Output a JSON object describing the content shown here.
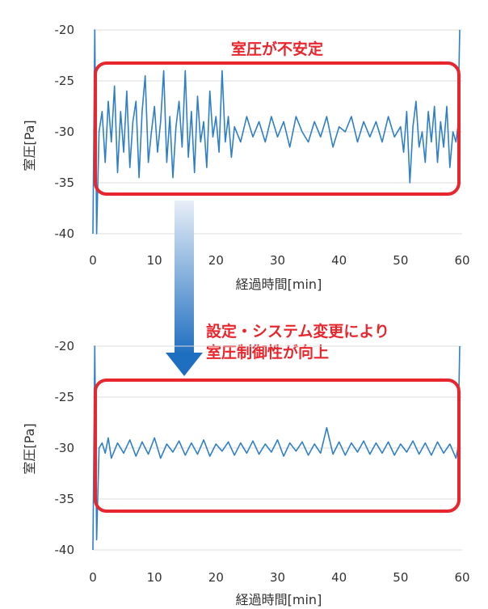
{
  "colors": {
    "series": "#2f7fc6",
    "highlight": "#e8262d",
    "grid": "#dcdcdc",
    "arrow_top": "#e8eef7",
    "arrow_bottom": "#1f6fc0"
  },
  "transition_note": "設定・システム変更により\n室圧制御性が向上",
  "chart_data": [
    {
      "type": "line",
      "xlabel": "経過時間[min]",
      "ylabel": "室圧[Pa]",
      "xlim": [
        0,
        60
      ],
      "ylim": [
        -40,
        -20
      ],
      "xticks": [
        0,
        10,
        20,
        30,
        40,
        50,
        60
      ],
      "yticks": [
        -20,
        -25,
        -30,
        -35,
        -40
      ],
      "grid": "horizontal",
      "series": [
        {
          "x": [
            0.0,
            0.3,
            0.6,
            1.0,
            1.5,
            2.0,
            2.5,
            3.0,
            3.5,
            4.0,
            4.5,
            5.0,
            5.5,
            6.0,
            6.5,
            7.0,
            7.5,
            8.0,
            8.5,
            9.0,
            9.5,
            10.0,
            10.5,
            11.0,
            11.5,
            12.0,
            12.5,
            13.0,
            13.5,
            14.0,
            14.5,
            15.0,
            15.5,
            16.0,
            16.5,
            17.0,
            17.5,
            18.0,
            18.5,
            19.0,
            19.5,
            20.0,
            20.5,
            21.0,
            21.5,
            22.0,
            22.5,
            23.0,
            24.0,
            25.0,
            26.0,
            27.0,
            28.0,
            29.0,
            30.0,
            31.0,
            32.0,
            33.0,
            34.0,
            35.0,
            36.0,
            37.0,
            38.0,
            39.0,
            40.0,
            41.0,
            42.0,
            43.0,
            44.0,
            45.0,
            46.0,
            47.0,
            48.0,
            49.0,
            50.0,
            50.5,
            51.0,
            51.5,
            52.0,
            52.5,
            53.0,
            53.5,
            54.0,
            54.5,
            55.0,
            55.5,
            56.0,
            56.5,
            57.0,
            57.5,
            58.0,
            58.5,
            59.0,
            59.3,
            59.6
          ],
          "y": [
            -40.0,
            -20.0,
            -40.0,
            -30.0,
            -28.0,
            -33.0,
            -27.0,
            -31.0,
            -25.5,
            -34.0,
            -28.0,
            -32.0,
            -26.0,
            -33.5,
            -29.0,
            -27.0,
            -34.5,
            -28.0,
            -24.5,
            -33.0,
            -30.0,
            -27.5,
            -32.0,
            -29.0,
            -24.0,
            -33.0,
            -28.5,
            -34.5,
            -29.5,
            -27.0,
            -31.5,
            -24.0,
            -32.5,
            -28.0,
            -34.0,
            -26.5,
            -31.0,
            -29.0,
            -33.5,
            -26.0,
            -30.5,
            -28.5,
            -32.0,
            -24.0,
            -31.0,
            -28.5,
            -32.5,
            -29.5,
            -31.0,
            -28.5,
            -30.5,
            -29.0,
            -31.0,
            -28.5,
            -30.5,
            -29.0,
            -31.5,
            -28.5,
            -30.0,
            -31.0,
            -29.0,
            -30.5,
            -28.5,
            -31.5,
            -29.5,
            -30.0,
            -28.5,
            -31.0,
            -29.0,
            -30.5,
            -29.0,
            -31.0,
            -28.5,
            -30.5,
            -29.5,
            -32.0,
            -28.0,
            -35.0,
            -29.5,
            -27.0,
            -31.5,
            -30.0,
            -33.0,
            -28.0,
            -31.0,
            -27.5,
            -33.0,
            -29.0,
            -31.5,
            -27.5,
            -33.5,
            -30.0,
            -31.0,
            -29.5,
            -20.0
          ]
        }
      ],
      "annotation": "室圧が不安定"
    },
    {
      "type": "line",
      "xlabel": "経過時間[min]",
      "ylabel": "室圧[Pa]",
      "xlim": [
        0,
        60
      ],
      "ylim": [
        -40,
        -20
      ],
      "xticks": [
        0,
        10,
        20,
        30,
        40,
        50,
        60
      ],
      "yticks": [
        -20,
        -25,
        -30,
        -35,
        -40
      ],
      "grid": "horizontal",
      "series": [
        {
          "x": [
            0.0,
            0.3,
            0.6,
            1.0,
            1.5,
            2.0,
            2.5,
            3.0,
            4.0,
            5.0,
            6.0,
            7.0,
            8.0,
            9.0,
            10.0,
            11.0,
            12.0,
            13.0,
            14.0,
            15.0,
            16.0,
            17.0,
            18.0,
            19.0,
            20.0,
            21.0,
            22.0,
            23.0,
            24.0,
            25.0,
            26.0,
            27.0,
            28.0,
            29.0,
            30.0,
            31.0,
            32.0,
            33.0,
            34.0,
            35.0,
            36.0,
            37.0,
            38.0,
            39.0,
            40.0,
            41.0,
            42.0,
            43.0,
            44.0,
            45.0,
            46.0,
            47.0,
            48.0,
            49.0,
            50.0,
            51.0,
            52.0,
            53.0,
            54.0,
            55.0,
            56.0,
            57.0,
            58.0,
            58.5,
            59.0,
            59.3,
            59.6
          ],
          "y": [
            -40.0,
            -20.0,
            -39.0,
            -30.0,
            -29.5,
            -30.5,
            -29.0,
            -31.0,
            -29.5,
            -30.5,
            -29.2,
            -30.8,
            -29.4,
            -30.6,
            -29.0,
            -31.0,
            -29.6,
            -30.4,
            -29.3,
            -30.7,
            -29.5,
            -30.6,
            -29.2,
            -30.8,
            -29.6,
            -30.3,
            -29.4,
            -30.7,
            -29.5,
            -30.5,
            -29.3,
            -30.6,
            -29.6,
            -30.4,
            -29.2,
            -30.8,
            -29.5,
            -30.3,
            -29.4,
            -30.7,
            -29.6,
            -30.5,
            -28.0,
            -30.6,
            -29.4,
            -30.7,
            -29.5,
            -30.4,
            -29.3,
            -30.6,
            -29.5,
            -30.5,
            -29.4,
            -30.7,
            -29.6,
            -30.4,
            -29.3,
            -30.6,
            -29.5,
            -30.7,
            -29.4,
            -30.5,
            -29.6,
            -30.3,
            -31.0,
            -30.0,
            -20.0
          ]
        }
      ]
    }
  ]
}
